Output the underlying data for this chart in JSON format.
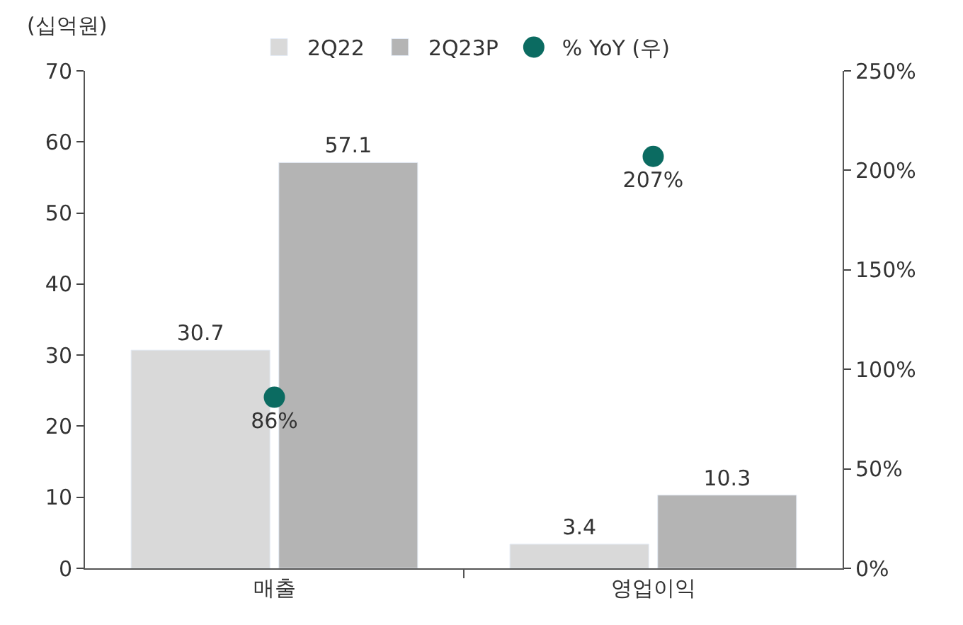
{
  "chart_data": {
    "type": "bar",
    "ylabel": "(십억원)",
    "categories": [
      "매출",
      "영업이익"
    ],
    "series": [
      {
        "name": "2Q22",
        "color": "#d9d9d9",
        "values": [
          30.7,
          3.4
        ]
      },
      {
        "name": "2Q23P",
        "color": "#b4b4b4",
        "values": [
          57.1,
          10.3
        ]
      },
      {
        "name": "% YoY (우)",
        "type": "scatter",
        "axis": "y2",
        "color": "#0b6b61",
        "values": [
          86,
          207
        ],
        "value_labels": [
          "86%",
          "207%"
        ]
      }
    ],
    "ylim": [
      0,
      70
    ],
    "yticks": [
      0,
      10,
      20,
      30,
      40,
      50,
      60,
      70
    ],
    "y2lim": [
      0,
      250
    ],
    "y2ticks": [
      {
        "value": 0,
        "label": "0%"
      },
      {
        "value": 50,
        "label": "50%"
      },
      {
        "value": 100,
        "label": "100%"
      },
      {
        "value": 150,
        "label": "150%"
      },
      {
        "value": 200,
        "label": "200%"
      },
      {
        "value": 250,
        "label": "250%"
      }
    ],
    "data_labels": true,
    "legend": "top",
    "marker": "circle"
  }
}
